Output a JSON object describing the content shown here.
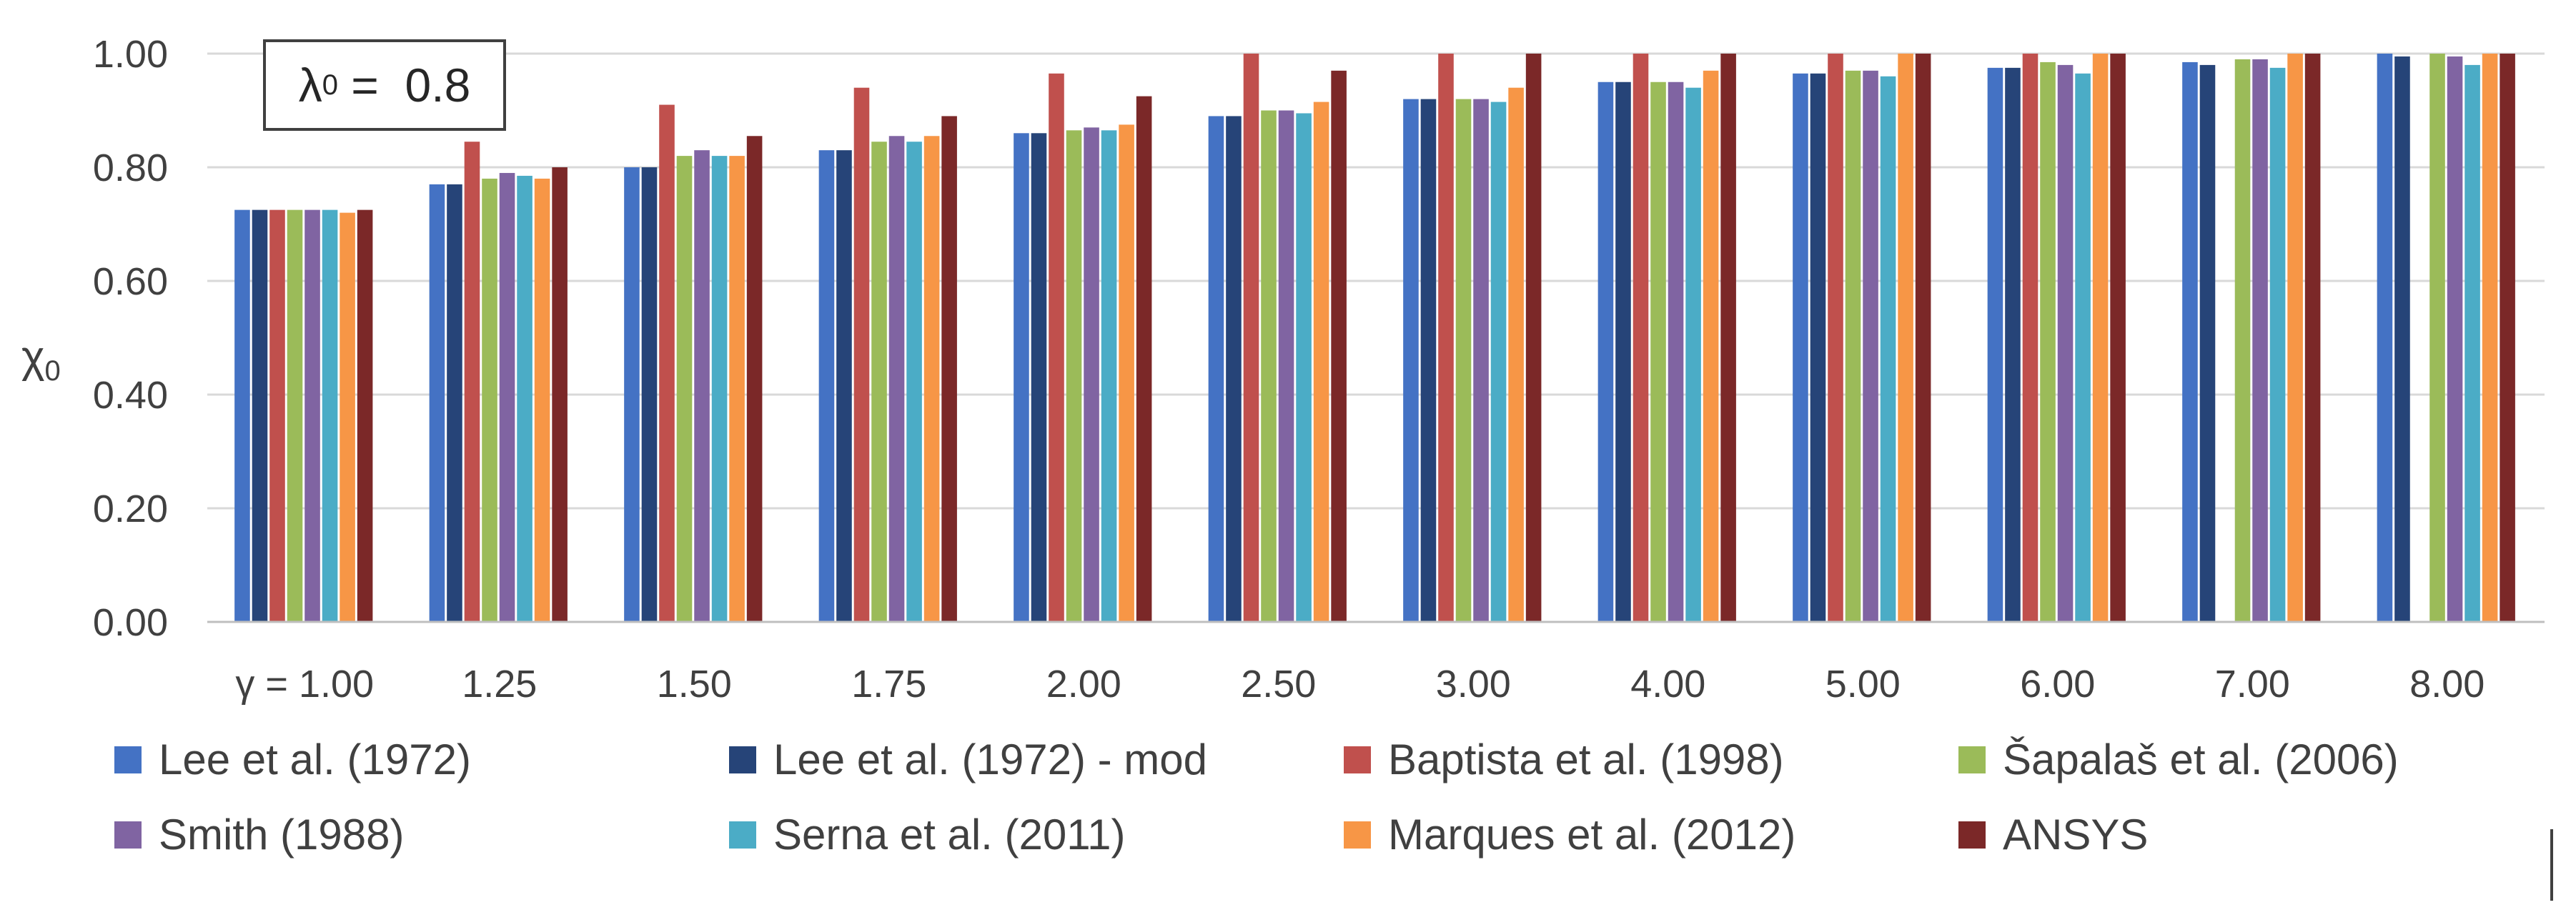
{
  "chart_data": {
    "type": "bar",
    "title": "",
    "annotation": {
      "symbol": "λ",
      "subscript": "0",
      "text": " =  0.8"
    },
    "ylabel": {
      "symbol": "χ",
      "subscript": "0"
    },
    "xlabel": "",
    "ylim": [
      0,
      1
    ],
    "yticks": [
      "0.00",
      "0.20",
      "0.40",
      "0.60",
      "0.80",
      "1.00"
    ],
    "ytick_values": [
      0,
      0.2,
      0.4,
      0.6,
      0.8,
      1.0
    ],
    "categories": [
      "γ = 1.00",
      "1.25",
      "1.50",
      "1.75",
      "2.00",
      "2.50",
      "3.00",
      "4.00",
      "5.00",
      "6.00",
      "7.00",
      "8.00"
    ],
    "grid": true,
    "legend_position": "bottom",
    "series": [
      {
        "name": "Lee et al. (1972)",
        "color": "#4472C4",
        "values": [
          0.725,
          0.77,
          0.8,
          0.83,
          0.86,
          0.89,
          0.92,
          0.95,
          0.965,
          0.975,
          0.985,
          1.0
        ]
      },
      {
        "name": "Lee et al. (1972) - mod",
        "color": "#264478",
        "values": [
          0.725,
          0.77,
          0.8,
          0.83,
          0.86,
          0.89,
          0.92,
          0.95,
          0.965,
          0.975,
          0.98,
          0.995
        ]
      },
      {
        "name": "Baptista et al.  (1998)",
        "color": "#C0504D",
        "values": [
          0.725,
          0.845,
          0.91,
          0.94,
          0.965,
          1.0,
          1.0,
          1.0,
          1.0,
          1.0,
          0.0,
          0.0
        ]
      },
      {
        "name": "Šapalaš et al. (2006)",
        "color": "#9BBB59",
        "values": [
          0.725,
          0.78,
          0.82,
          0.845,
          0.865,
          0.9,
          0.92,
          0.95,
          0.97,
          0.985,
          0.99,
          1.0
        ]
      },
      {
        "name": "Smith (1988)",
        "color": "#8064A2",
        "values": [
          0.725,
          0.79,
          0.83,
          0.855,
          0.87,
          0.9,
          0.92,
          0.95,
          0.97,
          0.98,
          0.99,
          0.995
        ]
      },
      {
        "name": "Serna et al. (2011)",
        "color": "#4BACC6",
        "values": [
          0.725,
          0.785,
          0.82,
          0.845,
          0.865,
          0.895,
          0.915,
          0.94,
          0.96,
          0.965,
          0.975,
          0.98
        ]
      },
      {
        "name": "Marques et al. (2012)",
        "color": "#F79646",
        "values": [
          0.72,
          0.78,
          0.82,
          0.855,
          0.875,
          0.915,
          0.94,
          0.97,
          1.0,
          1.0,
          1.0,
          1.0
        ]
      },
      {
        "name": "ANSYS",
        "color": "#7B2828",
        "values": [
          0.725,
          0.8,
          0.855,
          0.89,
          0.925,
          0.97,
          1.0,
          1.0,
          1.0,
          1.0,
          1.0,
          1.0
        ]
      }
    ]
  }
}
